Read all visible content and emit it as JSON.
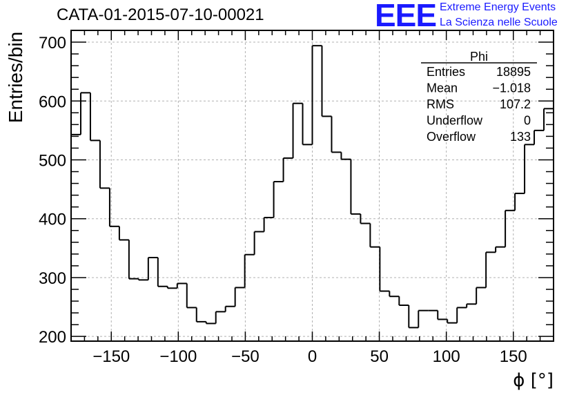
{
  "title": "CATA-01-2015-07-10-00021",
  "logo": {
    "mark": "EEE",
    "line1": "Extreme Energy Events",
    "line2": "La Scienza nelle Scuole",
    "color": "#1a1aff"
  },
  "stats_box": {
    "name": "Phi",
    "rows": [
      {
        "label": "Entries",
        "value": "18895"
      },
      {
        "label": "Mean",
        "value": "−1.018"
      },
      {
        "label": "RMS",
        "value": "107.2"
      },
      {
        "label": "Underflow",
        "value": "0"
      },
      {
        "label": "Overflow",
        "value": "133"
      }
    ]
  },
  "chart_data": {
    "type": "histogram",
    "xlabel": "ϕ [°]",
    "ylabel": "Entries/bin",
    "xlim": [
      -180,
      180
    ],
    "ylim": [
      192,
      720
    ],
    "grid": true,
    "x_ticks": [
      -150,
      -100,
      -50,
      0,
      50,
      100,
      150
    ],
    "x_tick_labels": [
      "−150",
      "−100",
      "−50",
      "0",
      "50",
      "100",
      "150"
    ],
    "y_ticks": [
      200,
      300,
      400,
      500,
      600,
      700
    ],
    "y_tick_labels": [
      "200",
      "300",
      "400",
      "500",
      "600",
      "700"
    ],
    "bin_edges_start": -180,
    "bin_width": 7.2,
    "values": [
      543,
      614,
      533,
      452,
      387,
      364,
      298,
      296,
      334,
      285,
      282,
      290,
      249,
      225,
      222,
      242,
      251,
      283,
      339,
      378,
      402,
      463,
      503,
      596,
      526,
      694,
      574,
      513,
      501,
      408,
      392,
      352,
      277,
      268,
      253,
      215,
      244,
      244,
      229,
      223,
      249,
      255,
      283,
      343,
      352,
      414,
      443,
      526,
      550,
      587
    ]
  }
}
